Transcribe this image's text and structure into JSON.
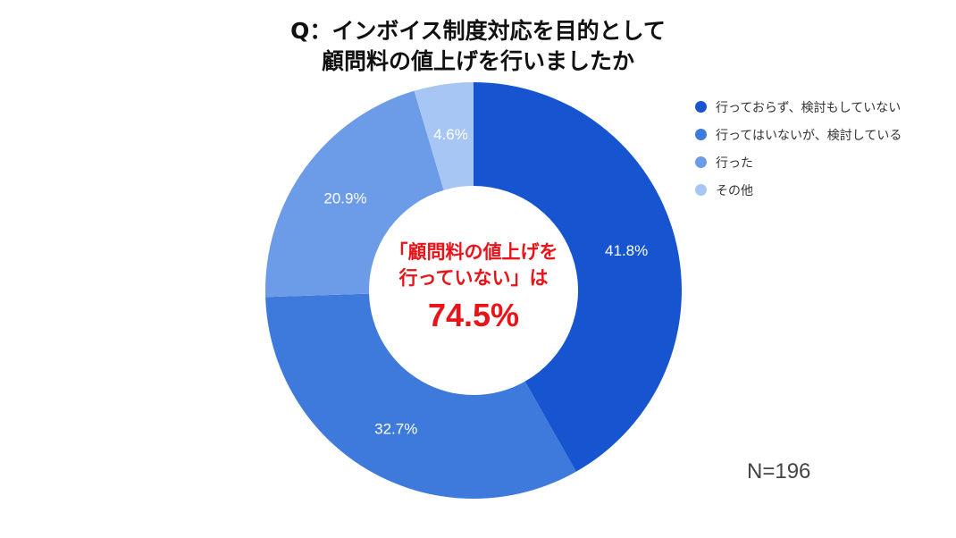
{
  "chart_data": {
    "type": "pie",
    "title_lines": [
      "Q：インボイス制度対応を目的として",
      "顧問料の値上げを行いましたか"
    ],
    "categories": [
      "行っておらず、検討もしていない",
      "行ってはいないが、検討している",
      "行った",
      "その他"
    ],
    "values": [
      41.8,
      32.7,
      20.9,
      4.6
    ],
    "data_labels": [
      "41.8%",
      "32.7%",
      "20.9%",
      "4.6%"
    ],
    "colors": [
      "#1655cf",
      "#3d7adb",
      "#6c9ce8",
      "#a8c6f4"
    ],
    "legend_position": "right",
    "donut": true
  },
  "center": {
    "line1": "「顧問料の値上げを",
    "line2": "行っていない」は",
    "value": "74.5%"
  },
  "footnote": "N=196"
}
